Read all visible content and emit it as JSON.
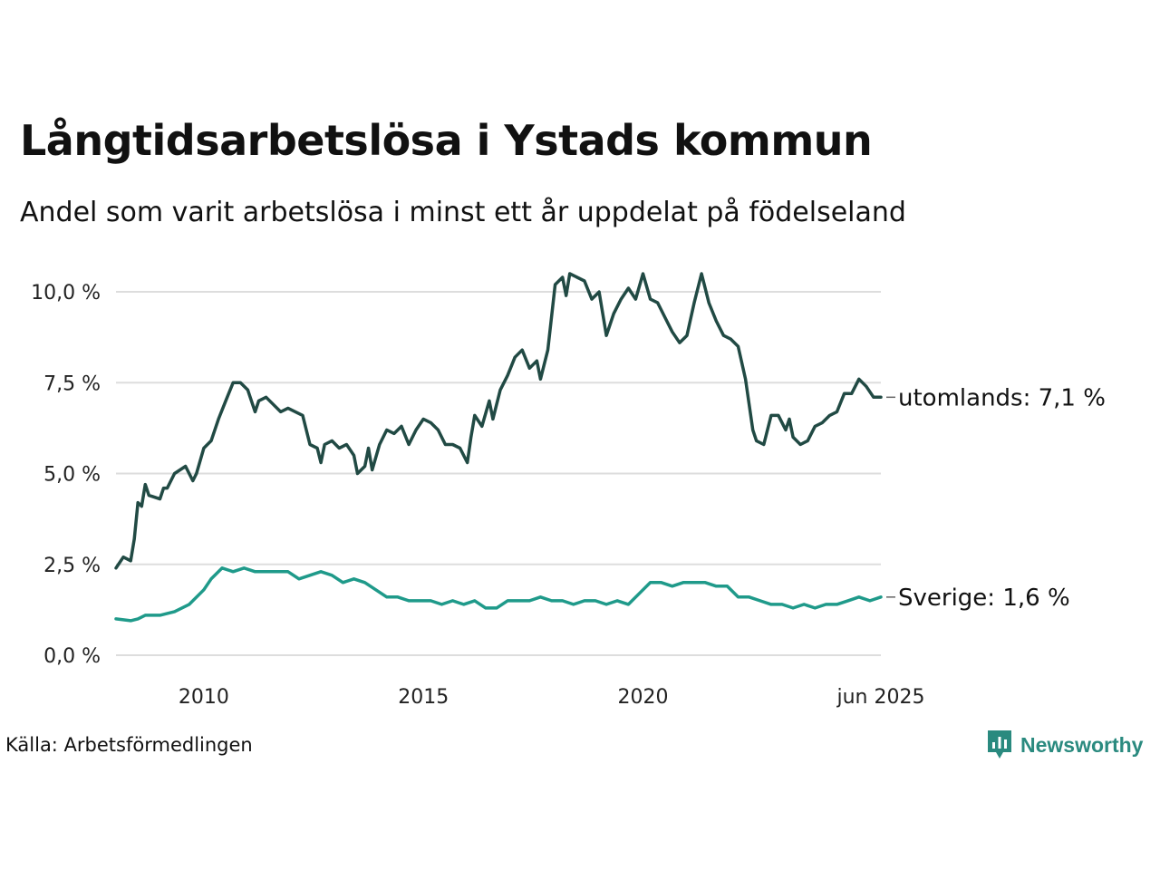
{
  "title": "Långtidsarbetslösa i Ystads kommun",
  "subtitle": "Andel som varit arbetslösa i minst ett år uppdelat på födelseland",
  "source": "Källa: Arbetsförmedlingen",
  "brand": "Newsworthy",
  "colors": {
    "utomlands": "#214a44",
    "sverige": "#1f9a8a",
    "grid": "#dddddd",
    "brand": "#2a8a7f"
  },
  "chart_data": {
    "type": "line",
    "x_start": "2008-01",
    "x_end": "2025-06",
    "ylim": [
      0,
      10.6
    ],
    "y_ticks": [
      0,
      2.5,
      5,
      7.5,
      10
    ],
    "y_tick_labels": [
      "0,0 %",
      "2,5 %",
      "5,0 %",
      "7,5 %",
      "10,0 %"
    ],
    "x_ticks": [
      "2010-01",
      "2015-01",
      "2020-01",
      "2025-06"
    ],
    "x_tick_labels": [
      "2010",
      "2015",
      "2020",
      "jun 2025"
    ],
    "grid": true,
    "series": [
      {
        "name": "utomlands",
        "end_label": "utomlands: 7,1 %",
        "points": [
          [
            "2008-01",
            2.4
          ],
          [
            "2008-03",
            2.7
          ],
          [
            "2008-05",
            2.6
          ],
          [
            "2008-06",
            3.2
          ],
          [
            "2008-07",
            4.2
          ],
          [
            "2008-08",
            4.1
          ],
          [
            "2008-09",
            4.7
          ],
          [
            "2008-10",
            4.4
          ],
          [
            "2009-01",
            4.3
          ],
          [
            "2009-02",
            4.6
          ],
          [
            "2009-03",
            4.6
          ],
          [
            "2009-05",
            5.0
          ],
          [
            "2009-08",
            5.2
          ],
          [
            "2009-10",
            4.8
          ],
          [
            "2009-11",
            5.0
          ],
          [
            "2010-01",
            5.7
          ],
          [
            "2010-03",
            5.9
          ],
          [
            "2010-05",
            6.5
          ],
          [
            "2010-07",
            7.0
          ],
          [
            "2010-09",
            7.5
          ],
          [
            "2010-11",
            7.5
          ],
          [
            "2011-01",
            7.3
          ],
          [
            "2011-03",
            6.7
          ],
          [
            "2011-04",
            7.0
          ],
          [
            "2011-06",
            7.1
          ],
          [
            "2011-08",
            6.9
          ],
          [
            "2011-10",
            6.7
          ],
          [
            "2011-12",
            6.8
          ],
          [
            "2012-02",
            6.7
          ],
          [
            "2012-04",
            6.6
          ],
          [
            "2012-06",
            5.8
          ],
          [
            "2012-08",
            5.7
          ],
          [
            "2012-09",
            5.3
          ],
          [
            "2012-10",
            5.8
          ],
          [
            "2012-12",
            5.9
          ],
          [
            "2013-02",
            5.7
          ],
          [
            "2013-04",
            5.8
          ],
          [
            "2013-06",
            5.5
          ],
          [
            "2013-07",
            5.0
          ],
          [
            "2013-09",
            5.2
          ],
          [
            "2013-10",
            5.7
          ],
          [
            "2013-11",
            5.1
          ],
          [
            "2014-01",
            5.8
          ],
          [
            "2014-03",
            6.2
          ],
          [
            "2014-05",
            6.1
          ],
          [
            "2014-07",
            6.3
          ],
          [
            "2014-09",
            5.8
          ],
          [
            "2014-11",
            6.2
          ],
          [
            "2015-01",
            6.5
          ],
          [
            "2015-03",
            6.4
          ],
          [
            "2015-05",
            6.2
          ],
          [
            "2015-07",
            5.8
          ],
          [
            "2015-09",
            5.8
          ],
          [
            "2015-11",
            5.7
          ],
          [
            "2016-01",
            5.3
          ],
          [
            "2016-02",
            6.0
          ],
          [
            "2016-03",
            6.6
          ],
          [
            "2016-05",
            6.3
          ],
          [
            "2016-07",
            7.0
          ],
          [
            "2016-08",
            6.5
          ],
          [
            "2016-10",
            7.3
          ],
          [
            "2016-12",
            7.7
          ],
          [
            "2017-02",
            8.2
          ],
          [
            "2017-04",
            8.4
          ],
          [
            "2017-06",
            7.9
          ],
          [
            "2017-08",
            8.1
          ],
          [
            "2017-09",
            7.6
          ],
          [
            "2017-11",
            8.4
          ],
          [
            "2018-01",
            10.2
          ],
          [
            "2018-03",
            10.4
          ],
          [
            "2018-04",
            9.9
          ],
          [
            "2018-05",
            10.5
          ],
          [
            "2018-07",
            10.4
          ],
          [
            "2018-09",
            10.3
          ],
          [
            "2018-11",
            9.8
          ],
          [
            "2019-01",
            10.0
          ],
          [
            "2019-03",
            8.8
          ],
          [
            "2019-05",
            9.4
          ],
          [
            "2019-07",
            9.8
          ],
          [
            "2019-09",
            10.1
          ],
          [
            "2019-11",
            9.8
          ],
          [
            "2020-01",
            10.5
          ],
          [
            "2020-03",
            9.8
          ],
          [
            "2020-05",
            9.7
          ],
          [
            "2020-07",
            9.3
          ],
          [
            "2020-09",
            8.9
          ],
          [
            "2020-11",
            8.6
          ],
          [
            "2021-01",
            8.8
          ],
          [
            "2021-03",
            9.7
          ],
          [
            "2021-05",
            10.5
          ],
          [
            "2021-07",
            9.7
          ],
          [
            "2021-09",
            9.2
          ],
          [
            "2021-11",
            8.8
          ],
          [
            "2022-01",
            8.7
          ],
          [
            "2022-03",
            8.5
          ],
          [
            "2022-05",
            7.6
          ],
          [
            "2022-07",
            6.2
          ],
          [
            "2022-08",
            5.9
          ],
          [
            "2022-10",
            5.8
          ],
          [
            "2022-12",
            6.6
          ],
          [
            "2023-02",
            6.6
          ],
          [
            "2023-04",
            6.2
          ],
          [
            "2023-05",
            6.5
          ],
          [
            "2023-06",
            6.0
          ],
          [
            "2023-08",
            5.8
          ],
          [
            "2023-10",
            5.9
          ],
          [
            "2023-12",
            6.3
          ],
          [
            "2024-02",
            6.4
          ],
          [
            "2024-04",
            6.6
          ],
          [
            "2024-06",
            6.7
          ],
          [
            "2024-08",
            7.2
          ],
          [
            "2024-10",
            7.2
          ],
          [
            "2024-12",
            7.6
          ],
          [
            "2025-02",
            7.4
          ],
          [
            "2025-04",
            7.1
          ],
          [
            "2025-06",
            7.1
          ]
        ]
      },
      {
        "name": "Sverige",
        "end_label": "Sverige: 1,6 %",
        "points": [
          [
            "2008-01",
            1.0
          ],
          [
            "2008-05",
            0.95
          ],
          [
            "2008-07",
            1.0
          ],
          [
            "2008-09",
            1.1
          ],
          [
            "2009-01",
            1.1
          ],
          [
            "2009-05",
            1.2
          ],
          [
            "2009-09",
            1.4
          ],
          [
            "2010-01",
            1.8
          ],
          [
            "2010-03",
            2.1
          ],
          [
            "2010-06",
            2.4
          ],
          [
            "2010-09",
            2.3
          ],
          [
            "2010-12",
            2.4
          ],
          [
            "2011-03",
            2.3
          ],
          [
            "2011-06",
            2.3
          ],
          [
            "2011-09",
            2.3
          ],
          [
            "2011-12",
            2.3
          ],
          [
            "2012-03",
            2.1
          ],
          [
            "2012-06",
            2.2
          ],
          [
            "2012-09",
            2.3
          ],
          [
            "2012-12",
            2.2
          ],
          [
            "2013-03",
            2.0
          ],
          [
            "2013-06",
            2.1
          ],
          [
            "2013-09",
            2.0
          ],
          [
            "2013-12",
            1.8
          ],
          [
            "2014-03",
            1.6
          ],
          [
            "2014-06",
            1.6
          ],
          [
            "2014-09",
            1.5
          ],
          [
            "2014-12",
            1.5
          ],
          [
            "2015-03",
            1.5
          ],
          [
            "2015-06",
            1.4
          ],
          [
            "2015-09",
            1.5
          ],
          [
            "2015-12",
            1.4
          ],
          [
            "2016-03",
            1.5
          ],
          [
            "2016-06",
            1.3
          ],
          [
            "2016-09",
            1.3
          ],
          [
            "2016-12",
            1.5
          ],
          [
            "2017-03",
            1.5
          ],
          [
            "2017-06",
            1.5
          ],
          [
            "2017-09",
            1.6
          ],
          [
            "2017-12",
            1.5
          ],
          [
            "2018-03",
            1.5
          ],
          [
            "2018-06",
            1.4
          ],
          [
            "2018-09",
            1.5
          ],
          [
            "2018-12",
            1.5
          ],
          [
            "2019-03",
            1.4
          ],
          [
            "2019-06",
            1.5
          ],
          [
            "2019-09",
            1.4
          ],
          [
            "2019-12",
            1.7
          ],
          [
            "2020-03",
            2.0
          ],
          [
            "2020-06",
            2.0
          ],
          [
            "2020-09",
            1.9
          ],
          [
            "2020-12",
            2.0
          ],
          [
            "2021-03",
            2.0
          ],
          [
            "2021-06",
            2.0
          ],
          [
            "2021-09",
            1.9
          ],
          [
            "2021-12",
            1.9
          ],
          [
            "2022-03",
            1.6
          ],
          [
            "2022-06",
            1.6
          ],
          [
            "2022-09",
            1.5
          ],
          [
            "2022-12",
            1.4
          ],
          [
            "2023-03",
            1.4
          ],
          [
            "2023-06",
            1.3
          ],
          [
            "2023-09",
            1.4
          ],
          [
            "2023-12",
            1.3
          ],
          [
            "2024-03",
            1.4
          ],
          [
            "2024-06",
            1.4
          ],
          [
            "2024-09",
            1.5
          ],
          [
            "2024-12",
            1.6
          ],
          [
            "2025-03",
            1.5
          ],
          [
            "2025-06",
            1.6
          ]
        ]
      }
    ]
  }
}
